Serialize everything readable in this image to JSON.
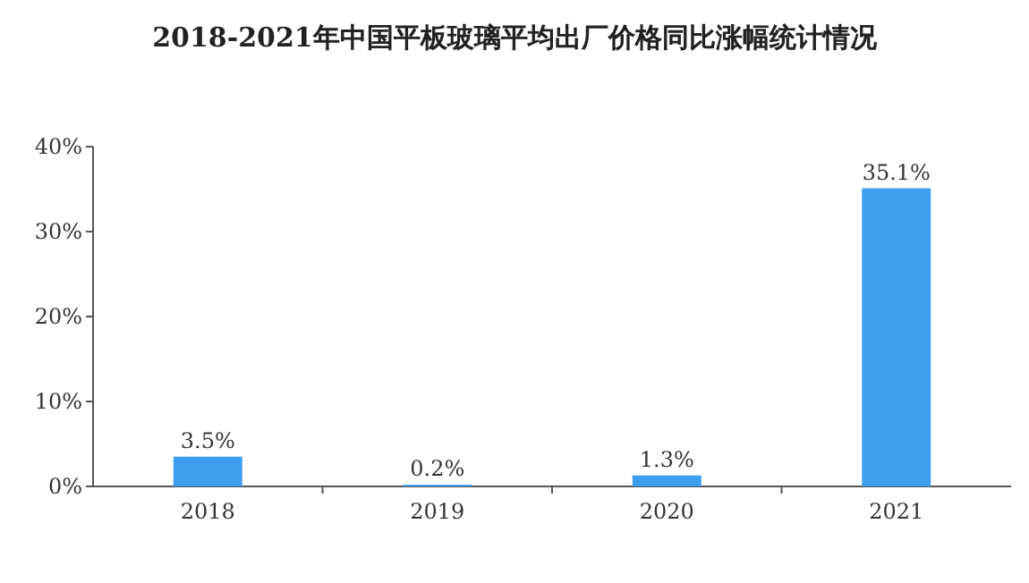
{
  "chart_data": {
    "type": "bar",
    "title": "2018-2021年中国平板玻璃平均出厂价格同比涨幅统计情况",
    "categories": [
      "2018",
      "2019",
      "2020",
      "2021"
    ],
    "values": [
      3.5,
      0.2,
      1.3,
      35.1
    ],
    "value_labels": [
      "3.5%",
      "0.2%",
      "1.3%",
      "35.1%"
    ],
    "color": "#3d9ef0",
    "ylim": [
      0,
      40
    ],
    "yticks": [
      {
        "value": 0,
        "label": "0%"
      },
      {
        "value": 10,
        "label": "10%"
      },
      {
        "value": 20,
        "label": "20%"
      },
      {
        "value": 30,
        "label": "30%"
      },
      {
        "value": 40,
        "label": "40%"
      }
    ]
  }
}
